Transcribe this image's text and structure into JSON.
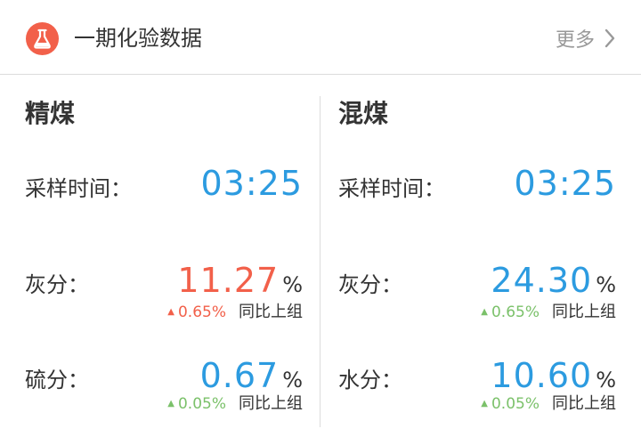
{
  "header": {
    "title": "一期化验数据",
    "more_label": "更多"
  },
  "colors": {
    "accent_red": "#f2604a",
    "value_blue": "#2c9be0",
    "up_green": "#7bc16a",
    "text_dark": "#333333",
    "text_gray": "#999999"
  },
  "left": {
    "title": "精煤",
    "time_label": "采样时间：",
    "time_value": "03:25",
    "rows": [
      {
        "label": "灰分：",
        "value": "11.27",
        "unit": "%",
        "change": "0.65%",
        "compare": "同比上组",
        "direction": "up",
        "value_color": "red",
        "change_color": "red"
      },
      {
        "label": "硫分：",
        "value": "0.67",
        "unit": "%",
        "change": "0.05%",
        "compare": "同比上组",
        "direction": "up",
        "value_color": "blue",
        "change_color": "green"
      }
    ]
  },
  "right": {
    "title": "混煤",
    "time_label": "采样时间：",
    "time_value": "03:25",
    "rows": [
      {
        "label": "灰分：",
        "value": "24.30",
        "unit": "%",
        "change": "0.65%",
        "compare": "同比上组",
        "direction": "up",
        "value_color": "blue",
        "change_color": "green"
      },
      {
        "label": "水分：",
        "value": "10.60",
        "unit": "%",
        "change": "0.05%",
        "compare": "同比上组",
        "direction": "up",
        "value_color": "blue",
        "change_color": "green"
      }
    ]
  }
}
